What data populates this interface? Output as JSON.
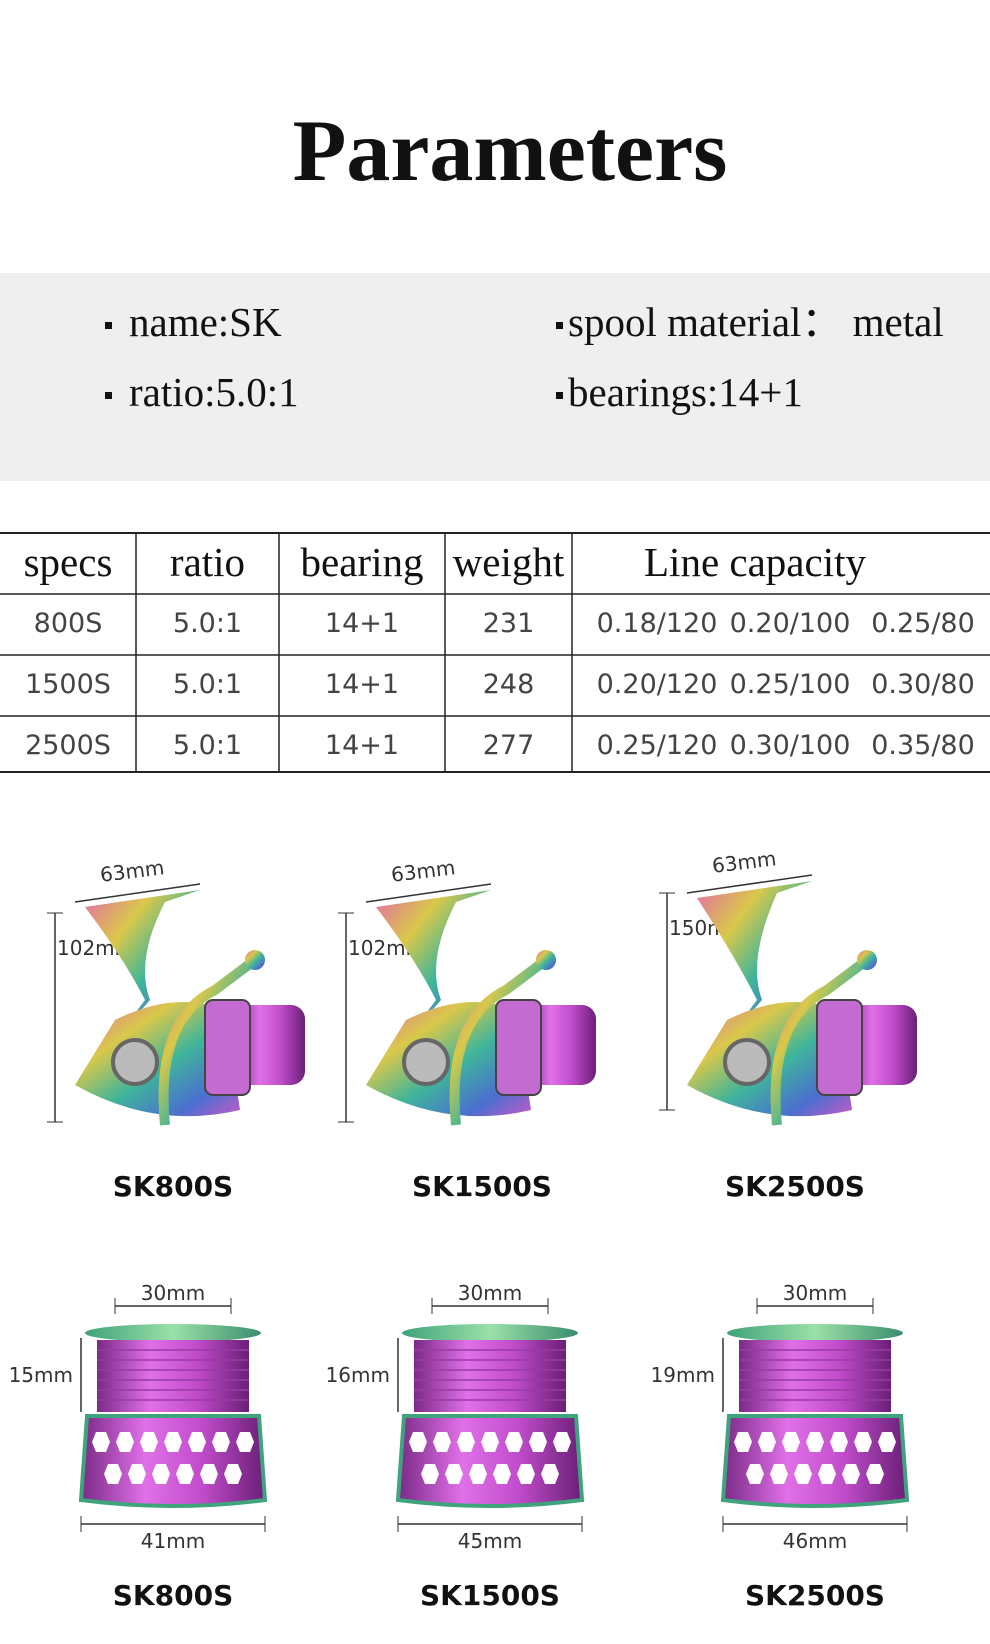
{
  "title": "Parameters",
  "params": [
    "name:SK",
    "spool material：  metal",
    "ratio:5.0:1",
    "bearings:14+1"
  ],
  "table": {
    "headers": [
      "specs",
      "ratio",
      "bearing",
      "weight",
      "Line capacity"
    ],
    "rows": [
      {
        "spec": "800S",
        "ratio": "5.0:1",
        "bearing": "14+1",
        "weight": "231",
        "capacity": [
          "0.18/120",
          "0.20/100",
          "0.25/80"
        ]
      },
      {
        "spec": "1500S",
        "ratio": "5.0:1",
        "bearing": "14+1",
        "weight": "248",
        "capacity": [
          "0.20/120",
          "0.25/100",
          "0.30/80"
        ]
      },
      {
        "spec": "2500S",
        "ratio": "5.0:1",
        "bearing": "14+1",
        "weight": "277",
        "capacity": [
          "0.25/120",
          "0.30/100",
          "0.35/80"
        ]
      }
    ]
  },
  "reels": [
    {
      "width": "63mm",
      "height": "102mm",
      "label": "SK800S"
    },
    {
      "width": "63mm",
      "height": "102mm",
      "label": "SK1500S"
    },
    {
      "width": "63mm",
      "height": "150mm",
      "label": "SK2500S"
    }
  ],
  "spools": [
    {
      "top": "30mm",
      "height": "15mm",
      "bottom": "41mm",
      "label": "SK800S"
    },
    {
      "top": "30mm",
      "height": "16mm",
      "bottom": "45mm",
      "label": "SK1500S"
    },
    {
      "top": "30mm",
      "height": "19mm",
      "bottom": "46mm",
      "label": "SK2500S"
    }
  ]
}
